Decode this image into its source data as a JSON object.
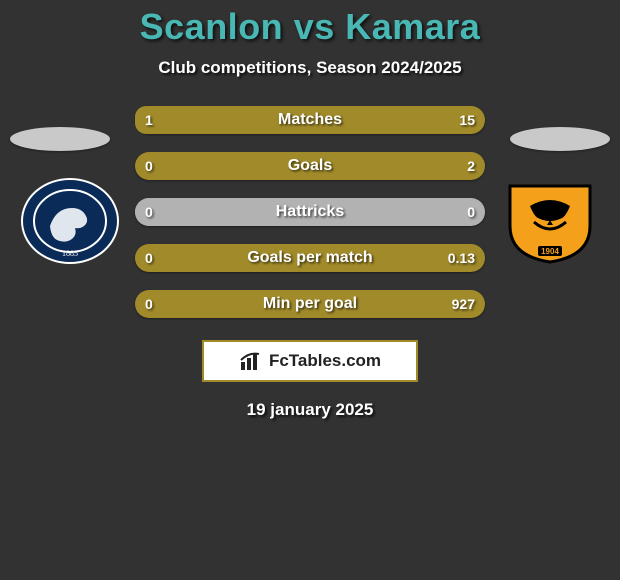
{
  "title_color": "#49b8b4",
  "text_shadow_color": "#000000",
  "background_color": "#323232",
  "header": {
    "player1": "Scanlon",
    "vs": "vs",
    "player2": "Kamara",
    "subtitle": "Club competitions, Season 2024/2025"
  },
  "colors": {
    "left": "#a08a2a",
    "right": "#a08a2a",
    "neutral": "#b2b2b2",
    "ellipse_left": "#c9c9c9",
    "ellipse_right": "#c9c9c9"
  },
  "bars": [
    {
      "label": "Matches",
      "left": "1",
      "right": "15",
      "left_pct": 6.3,
      "right_pct": 93.7
    },
    {
      "label": "Goals",
      "left": "0",
      "right": "2",
      "left_pct": 0,
      "right_pct": 100
    },
    {
      "label": "Hattricks",
      "left": "0",
      "right": "0",
      "left_pct": 50,
      "right_pct": 50,
      "neutral": true
    },
    {
      "label": "Goals per match",
      "left": "0",
      "right": "0.13",
      "left_pct": 0,
      "right_pct": 100
    },
    {
      "label": "Min per goal",
      "left": "0",
      "right": "927",
      "left_pct": 0,
      "right_pct": 100
    }
  ],
  "footer": {
    "brand": "FcTables.com",
    "date": "19 january 2025"
  },
  "badge_left": {
    "name": "Millwall",
    "year": "1885",
    "bg": "#0a2a57",
    "ring": "#ffffff"
  },
  "badge_right": {
    "name": "Hull City",
    "year": "1904",
    "bg": "#f4a01b",
    "ring": "#000000"
  }
}
